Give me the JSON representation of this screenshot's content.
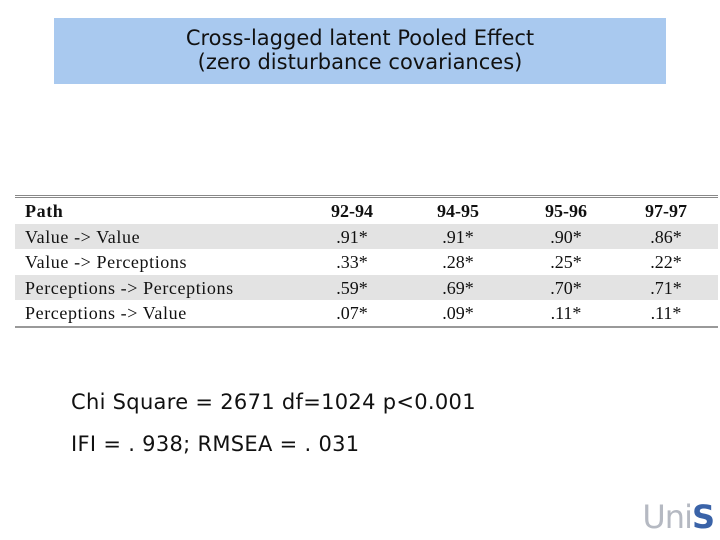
{
  "header": {
    "title": [
      "Cross-lagged latent Pooled Effect",
      "(zero disturbance covariances)"
    ]
  },
  "table": {
    "columns": [
      "Path",
      "92-94",
      "94-95",
      "95-96",
      "97-97"
    ],
    "rows": [
      [
        "Value -> Value",
        ".91*",
        ".91*",
        ".90*",
        ".86*"
      ],
      [
        "Value -> Perceptions",
        ".33*",
        ".28*",
        ".25*",
        ".22*"
      ],
      [
        "Perceptions -> Perceptions",
        ".59*",
        ".69*",
        ".70*",
        ".71*"
      ],
      [
        "Perceptions -> Value",
        ".07*",
        ".09*",
        ".11*",
        ".11*"
      ]
    ]
  },
  "stats": [
    "Chi Square = 2671 df=1024 p<0.001",
    "IFI = . 938; RMSEA = . 031"
  ],
  "logo": [
    "Uni",
    "S"
  ]
}
